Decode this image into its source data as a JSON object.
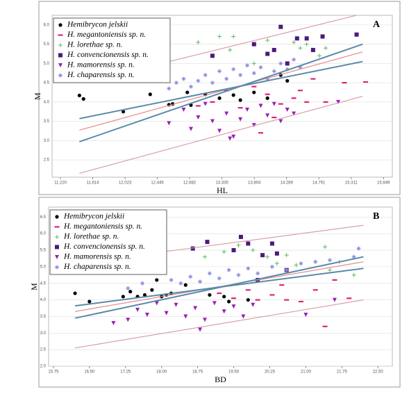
{
  "chart_data": [
    {
      "type": "scatter",
      "panel_label": "A",
      "xlabel": "HL",
      "ylabel": "M",
      "xscale": "log",
      "grid": true,
      "xlim": [
        11.12,
        16.0
      ],
      "ylim": [
        2.05,
        6.25
      ],
      "xticks": [
        {
          "value": 11.22,
          "label": "11.220"
        },
        11.614,
        12.023,
        12.445,
        12.882,
        13.335,
        13.804,
        14.289,
        14.791,
        15.311,
        15.849
      ],
      "yticks": [
        {
          "value": 2.5,
          "label": "2.5"
        },
        {
          "value": 3,
          "label": "3.0"
        },
        {
          "value": 3.5,
          "label": "3.5"
        },
        {
          "value": 4,
          "label": "4.0"
        },
        {
          "value": 4.5,
          "label": "4.5"
        },
        {
          "value": 5,
          "label": "5.0"
        },
        {
          "value": 5.5,
          "label": "5.5"
        },
        {
          "value": 6,
          "label": "6.0"
        }
      ],
      "series": [
        {
          "name": "Hemibrycon jelskii",
          "color": "#000000",
          "marker": "circle",
          "x": [
            11.45,
            11.5,
            12.0,
            12.35,
            12.6,
            12.65,
            12.85,
            12.9,
            13.1,
            13.3,
            13.5,
            13.6,
            13.8,
            14.2,
            14.0,
            14.3
          ],
          "y": [
            4.17,
            4.08,
            3.75,
            4.2,
            3.93,
            3.95,
            4.25,
            3.92,
            4.2,
            4.1,
            4.18,
            4.05,
            4.25,
            4.7,
            4.1,
            4.55
          ]
        },
        {
          "name": "H. megantoniensis sp. n.",
          "color": "#e0207a",
          "marker": "dash",
          "x": [
            13.0,
            13.2,
            13.4,
            13.6,
            13.8,
            14.0,
            14.2,
            14.4,
            14.5,
            14.6,
            14.7,
            14.9,
            15.2,
            15.55,
            13.9,
            14.1
          ],
          "y": [
            3.9,
            4.0,
            4.3,
            3.85,
            4.4,
            4.2,
            3.95,
            4.1,
            4.3,
            4.0,
            4.6,
            4.0,
            4.5,
            4.52,
            3.2,
            3.6
          ]
        },
        {
          "name": "H. lorethae sp. n.",
          "color": "#5cb85c",
          "marker": "plus",
          "x": [
            13.0,
            13.3,
            13.5,
            13.45,
            14.0,
            14.4,
            14.5,
            14.6,
            14.8,
            14.9,
            13.8
          ],
          "y": [
            5.55,
            5.7,
            5.7,
            5.35,
            5.6,
            5.55,
            5.4,
            5.5,
            5.2,
            5.4,
            5.0
          ]
        },
        {
          "name": "H. convencionensis sp. n.",
          "color": "#4b1a7a",
          "marker": "square",
          "x": [
            13.2,
            13.8,
            14.0,
            14.2,
            14.3,
            14.45,
            14.6,
            14.7,
            14.85,
            15.4,
            14.1
          ],
          "y": [
            5.2,
            5.5,
            5.25,
            5.95,
            5.0,
            5.65,
            5.65,
            5.35,
            5.7,
            5.75,
            5.35
          ]
        },
        {
          "name": "H. mamorensis sp. n.",
          "color": "#9b1fb5",
          "marker": "triangle",
          "x": [
            12.6,
            12.8,
            12.9,
            13.0,
            13.1,
            13.2,
            13.3,
            13.4,
            13.5,
            13.6,
            13.7,
            13.8,
            13.9,
            14.0,
            14.1,
            14.2,
            14.3,
            14.4,
            15.1,
            13.45
          ],
          "y": [
            3.45,
            3.8,
            3.3,
            3.6,
            3.95,
            3.5,
            3.25,
            3.7,
            3.1,
            3.55,
            3.8,
            3.4,
            3.9,
            3.65,
            3.95,
            3.5,
            3.8,
            3.7,
            4.0,
            3.05
          ]
        },
        {
          "name": "H. chaparensis sp. n.",
          "color": "#8c8ce0",
          "marker": "star",
          "x": [
            12.7,
            12.8,
            12.9,
            13.0,
            13.1,
            13.2,
            13.3,
            13.4,
            13.5,
            13.6,
            13.7,
            13.8,
            13.9,
            14.0,
            14.1,
            14.2,
            14.3,
            14.4,
            14.5,
            12.6
          ],
          "y": [
            4.5,
            4.6,
            4.4,
            4.55,
            4.7,
            4.5,
            4.8,
            4.6,
            4.85,
            4.7,
            4.95,
            4.75,
            4.9,
            4.6,
            4.8,
            5.0,
            4.85,
            5.1,
            4.9,
            4.35
          ]
        }
      ],
      "reference_lines": [
        {
          "color": "#d9a0a8",
          "x": [
            12.5,
            15.4
          ],
          "y": [
            5.0,
            6.25
          ]
        },
        {
          "color": "#d9a0a8",
          "x": [
            11.45,
            15.5
          ],
          "y": [
            2.15,
            4.15
          ]
        },
        {
          "color": "#e58a8a",
          "x": [
            11.45,
            15.5
          ],
          "y": [
            3.27,
            5.3
          ]
        },
        {
          "color": "#5a8aa8",
          "x": [
            11.45,
            15.5
          ],
          "y": [
            2.97,
            5.5
          ]
        },
        {
          "color": "#5a8aa8",
          "x": [
            11.45,
            15.5
          ],
          "y": [
            3.57,
            5.05
          ]
        }
      ]
    },
    {
      "type": "scatter",
      "panel_label": "B",
      "xlabel": "BD",
      "ylabel": "M",
      "grid": true,
      "xlim": [
        15.65,
        22.8
      ],
      "ylim": [
        2.0,
        6.8
      ],
      "xticks": [
        15.75,
        {
          "value": 16.5,
          "label": "16.50"
        },
        17.25,
        {
          "value": 18,
          "label": "18.00"
        },
        18.75,
        {
          "value": 19.5,
          "label": "19.50"
        },
        20.25,
        {
          "value": 21,
          "label": "21.00"
        },
        21.75,
        {
          "value": 22.5,
          "label": "22.50"
        }
      ],
      "yticks": [
        {
          "value": 2,
          "label": "2.0"
        },
        {
          "value": 2.5,
          "label": "2.5"
        },
        {
          "value": 3,
          "label": "3.0"
        },
        {
          "value": 3.5,
          "label": "3.5"
        },
        {
          "value": 4,
          "label": "4.0"
        },
        {
          "value": 4.5,
          "label": "4.5"
        },
        {
          "value": 5,
          "label": "5.0"
        },
        {
          "value": 5.5,
          "label": "5.5"
        },
        {
          "value": 6,
          "label": "6.0"
        },
        {
          "value": 6.5,
          "label": "6.5"
        }
      ],
      "series": [
        {
          "name": "Hemibrycon jelskii",
          "color": "#000000",
          "marker": "circle",
          "x": [
            16.2,
            16.5,
            17.2,
            17.35,
            17.5,
            17.65,
            17.8,
            17.9,
            18.0,
            18.1,
            18.2,
            18.5,
            19.0,
            19.3,
            19.4,
            19.8
          ],
          "y": [
            4.2,
            3.95,
            4.1,
            4.25,
            4.1,
            4.15,
            4.3,
            4.6,
            4.1,
            4.15,
            4.2,
            4.45,
            4.15,
            4.1,
            3.95,
            4.0
          ]
        },
        {
          "name": "H. megantoniensis sp. n.",
          "color": "#e0207a",
          "marker": "dash",
          "x": [
            19.2,
            19.5,
            19.8,
            20.0,
            20.3,
            20.6,
            20.9,
            21.2,
            21.4,
            21.6,
            21.9,
            20.5
          ],
          "y": [
            4.2,
            4.05,
            4.3,
            4.0,
            4.15,
            4.0,
            3.95,
            4.3,
            3.2,
            4.6,
            4.05,
            4.45
          ]
        },
        {
          "name": "H. lorethae sp. n.",
          "color": "#5cb85c",
          "marker": "plus",
          "x": [
            18.9,
            19.3,
            19.6,
            19.9,
            20.2,
            20.4,
            20.6,
            20.8,
            21.5,
            21.7,
            22.0,
            21.4
          ],
          "y": [
            5.3,
            5.45,
            5.65,
            5.5,
            5.3,
            5.1,
            5.35,
            5.05,
            4.9,
            5.15,
            4.75,
            5.6
          ]
        },
        {
          "name": "H. convencionensis sp. n.",
          "color": "#4b1a7a",
          "marker": "square",
          "x": [
            18.65,
            18.95,
            19.5,
            19.8,
            19.65,
            20.3,
            20.1,
            20.4,
            20.0,
            20.6
          ],
          "y": [
            5.55,
            5.75,
            5.5,
            5.7,
            5.9,
            5.7,
            5.35,
            5.4,
            4.6,
            4.9
          ]
        },
        {
          "name": "H. mamorensis sp. n.",
          "color": "#9b1fb5",
          "marker": "triangle",
          "x": [
            17.0,
            17.3,
            17.5,
            17.7,
            17.9,
            18.1,
            18.3,
            18.5,
            18.7,
            18.9,
            19.1,
            19.3,
            19.5,
            19.7,
            19.9,
            18.8,
            21.0,
            21.6
          ],
          "y": [
            3.3,
            3.4,
            3.7,
            3.55,
            3.9,
            3.6,
            3.85,
            3.5,
            3.75,
            3.4,
            3.9,
            3.65,
            3.8,
            3.5,
            3.85,
            3.1,
            3.55,
            4.0
          ]
        },
        {
          "name": "H. chaparensis sp. n.",
          "color": "#8c8ce0",
          "marker": "star",
          "x": [
            17.3,
            17.6,
            18.2,
            18.4,
            18.6,
            18.8,
            19.0,
            19.2,
            19.4,
            19.6,
            19.8,
            20.0,
            20.3,
            20.6,
            20.9,
            21.2,
            21.5,
            22.1,
            22.0
          ],
          "y": [
            4.35,
            4.5,
            4.6,
            4.5,
            4.7,
            4.55,
            4.8,
            4.65,
            4.9,
            4.75,
            4.95,
            4.8,
            5.0,
            4.9,
            5.1,
            5.15,
            5.2,
            5.55,
            5.3
          ]
        }
      ],
      "reference_lines": [
        {
          "color": "#d9a0a8",
          "x": [
            17.0,
            22.2
          ],
          "y": [
            5.25,
            6.25
          ]
        },
        {
          "color": "#d9a0a8",
          "x": [
            16.2,
            22.2
          ],
          "y": [
            2.55,
            4.0
          ]
        },
        {
          "color": "#e58a8a",
          "x": [
            16.2,
            22.2
          ],
          "y": [
            3.65,
            5.15
          ]
        },
        {
          "color": "#5a8aa8",
          "x": [
            16.2,
            22.2
          ],
          "y": [
            3.45,
            5.3
          ]
        },
        {
          "color": "#5a8aa8",
          "x": [
            16.2,
            22.2
          ],
          "y": [
            3.82,
            4.95
          ]
        }
      ]
    }
  ]
}
